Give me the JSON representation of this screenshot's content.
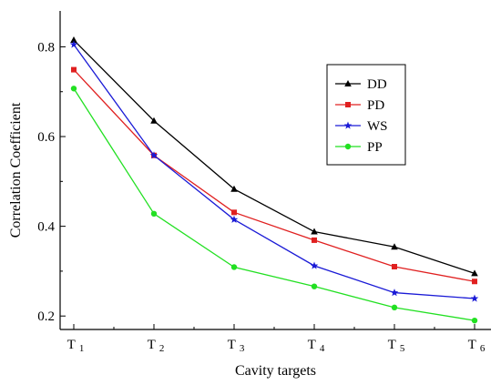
{
  "chart_data": {
    "type": "line",
    "xlabel": "Cavity targets",
    "ylabel": "Correlation Coefficient",
    "categories": [
      {
        "main": "T",
        "sub": "1"
      },
      {
        "main": "T",
        "sub": "2"
      },
      {
        "main": "T",
        "sub": "3"
      },
      {
        "main": "T",
        "sub": "4"
      },
      {
        "main": "T",
        "sub": "5"
      },
      {
        "main": "T",
        "sub": "6"
      }
    ],
    "ylim": [
      0.17,
      0.88
    ],
    "yticks": [
      0.2,
      0.4,
      0.6,
      0.8
    ],
    "ytick_labels": [
      "0.2",
      "0.4",
      "0.6",
      "0.8"
    ],
    "legend_position": "top-right",
    "grid": false,
    "series": [
      {
        "name": "DD",
        "color": "#000000",
        "marker": "triangle",
        "values": [
          0.815,
          0.635,
          0.483,
          0.388,
          0.354,
          0.295
        ]
      },
      {
        "name": "PD",
        "color": "#e02020",
        "marker": "square",
        "values": [
          0.749,
          0.558,
          0.431,
          0.369,
          0.31,
          0.277
        ]
      },
      {
        "name": "WS",
        "color": "#1a1ad6",
        "marker": "star",
        "values": [
          0.805,
          0.558,
          0.415,
          0.312,
          0.252,
          0.239
        ]
      },
      {
        "name": "PP",
        "color": "#22e022",
        "marker": "circle",
        "values": [
          0.707,
          0.428,
          0.309,
          0.266,
          0.219,
          0.19
        ]
      }
    ]
  }
}
